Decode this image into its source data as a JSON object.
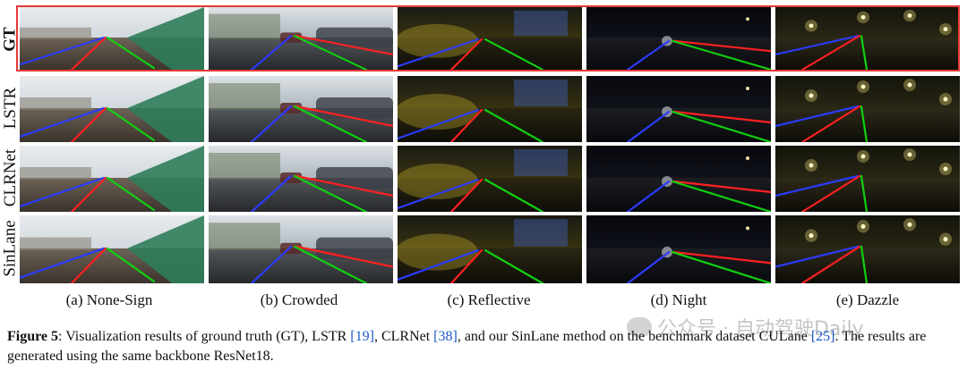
{
  "rows": [
    {
      "label": "GT",
      "bold": true
    },
    {
      "label": "LSTR",
      "bold": false
    },
    {
      "label": "CLRNet",
      "bold": false
    },
    {
      "label": "SinLane",
      "bold": false
    }
  ],
  "columns": [
    {
      "caption": "(a) None-Sign",
      "scene": "daylight-sign"
    },
    {
      "caption": "(b) Crowded",
      "scene": "daylight-crowded"
    },
    {
      "caption": "(c) Reflective",
      "scene": "night-reflective"
    },
    {
      "caption": "(d) Night",
      "scene": "night-dark"
    },
    {
      "caption": "(e) Dazzle",
      "scene": "night-dazzle"
    }
  ],
  "lane_colors": {
    "left": "#2b3bff",
    "middle": "#ff2020",
    "right": "#10d010"
  },
  "gt_frame_color": "#e53935",
  "caption": {
    "figure_label": "Figure 5",
    "text_1": ": Visualization results of ground truth (GT), LSTR ",
    "ref_1": "[19]",
    "text_2": ", CLRNet ",
    "ref_2": "[38]",
    "text_3": ", and our SinLane method on the benchmark dataset CULane ",
    "ref_3": "[25]",
    "text_4": ". The results are generated using the same backbone ResNet18."
  },
  "watermark": {
    "text": "公众号 · 自动驾驶Daily"
  }
}
